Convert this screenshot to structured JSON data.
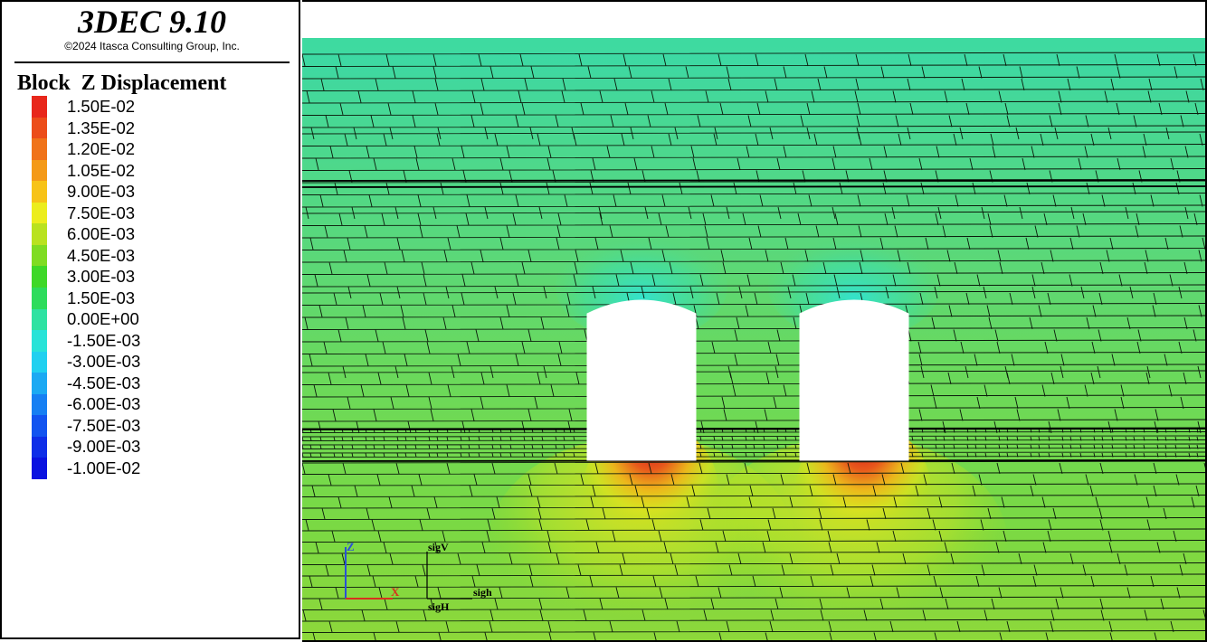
{
  "app": {
    "title": "3DEC 9.10",
    "copyright": "©2024 Itasca Consulting Group, Inc."
  },
  "legend": {
    "heading": "Block  Z Displacement",
    "entries": [
      {
        "label": "1.50E-02",
        "color": "#e8271b"
      },
      {
        "label": "1.35E-02",
        "color": "#ec4d1a"
      },
      {
        "label": "1.20E-02",
        "color": "#f07319"
      },
      {
        "label": "1.05E-02",
        "color": "#f49a18"
      },
      {
        "label": "9.00E-03",
        "color": "#f7c317"
      },
      {
        "label": "7.50E-03",
        "color": "#eced1d"
      },
      {
        "label": "6.00E-03",
        "color": "#b9e21f"
      },
      {
        "label": "4.50E-03",
        "color": "#7fdc22"
      },
      {
        "label": "3.00E-03",
        "color": "#3ed828"
      },
      {
        "label": "1.50E-03",
        "color": "#2ddc5c"
      },
      {
        "label": "0.00E+00",
        "color": "#2ee2a2"
      },
      {
        "label": "-1.50E-03",
        "color": "#28e3d8"
      },
      {
        "label": "-3.00E-03",
        "color": "#20d0f0"
      },
      {
        "label": "-4.50E-03",
        "color": "#1ba9f3"
      },
      {
        "label": "-6.00E-03",
        "color": "#167ff3"
      },
      {
        "label": "-7.50E-03",
        "color": "#1254f0"
      },
      {
        "label": "-9.00E-03",
        "color": "#0e2ee8"
      },
      {
        "label": "-1.00E-02",
        "color": "#0a12e0"
      }
    ]
  },
  "model": {
    "field_color": "#6fd85c",
    "top_band_color": "#3fd9a0",
    "hot_color": "#e2361c",
    "warm_color": "#f0c21a",
    "cool_color": "#33e3d0",
    "excavations": [
      {
        "name": "left-tunnel"
      },
      {
        "name": "right-tunnel"
      }
    ]
  },
  "axes_triad": {
    "z_label": "Z",
    "x_label": "X",
    "z_color": "#2a4fd8",
    "x_color": "#d8301e"
  },
  "stress_triad": {
    "v_label": "sigV",
    "h_label": "sigh",
    "H_label": "sigH"
  }
}
